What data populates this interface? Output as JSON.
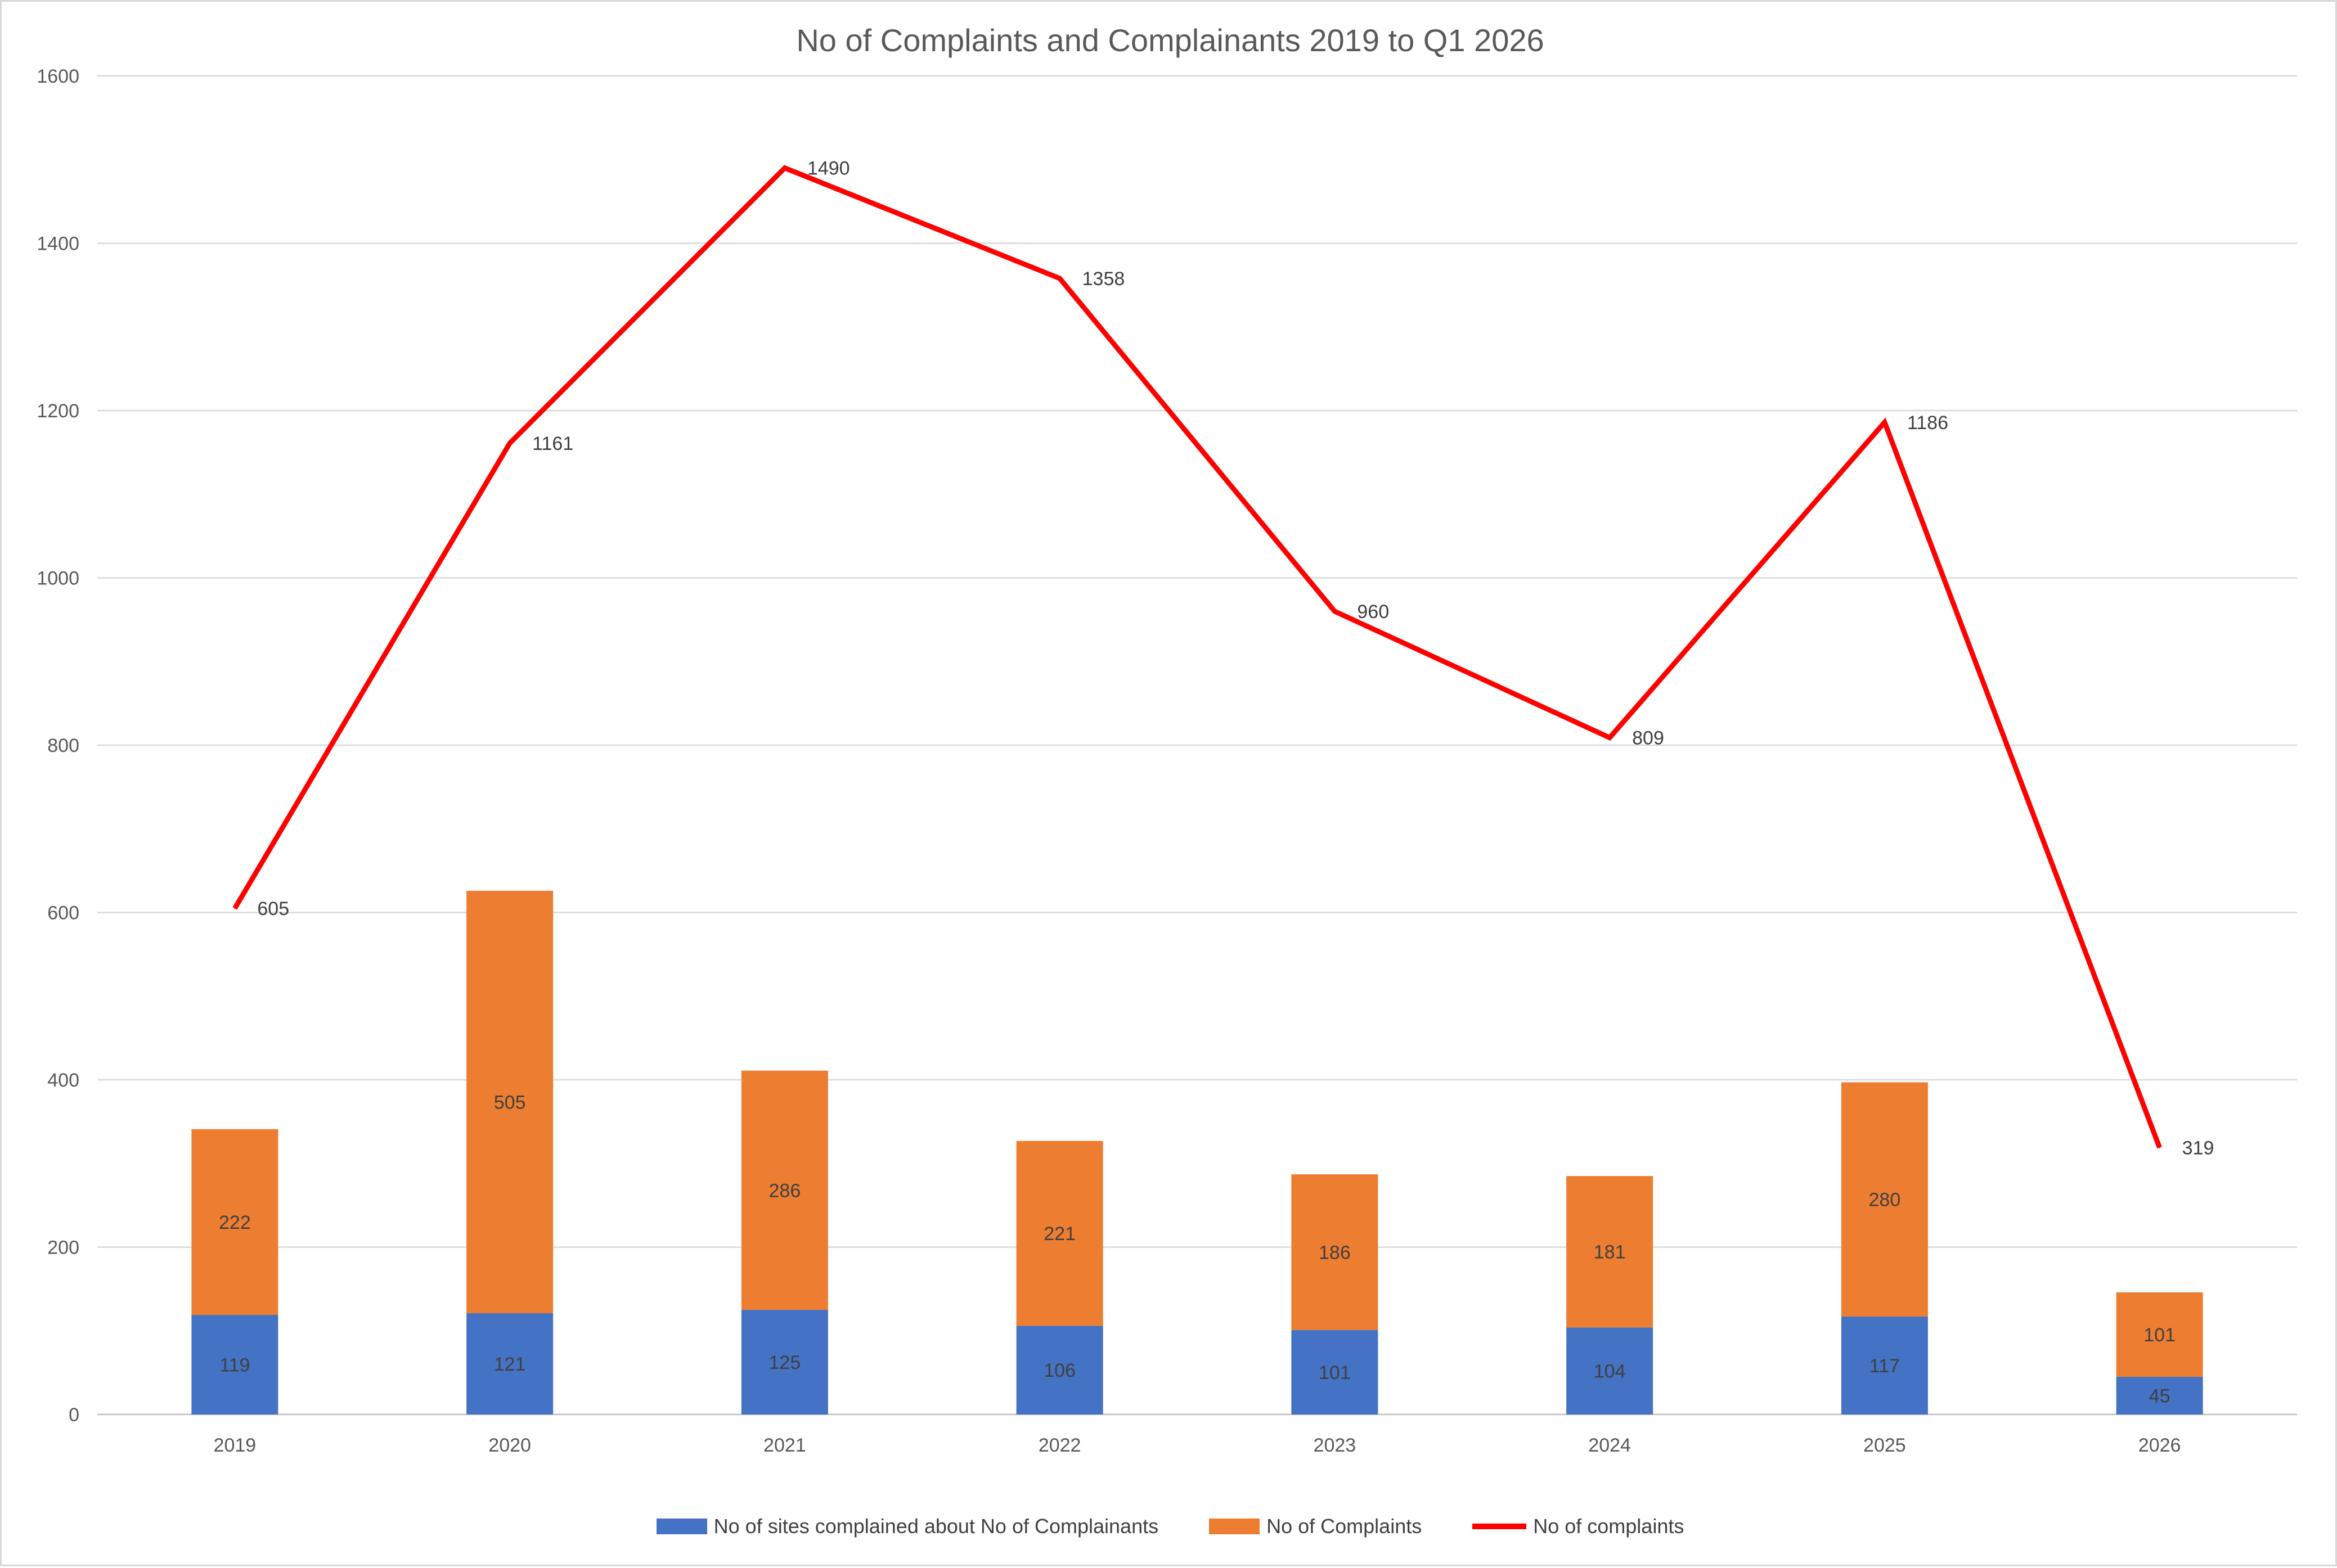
{
  "chart_data": {
    "type": "bar",
    "title": "No of Complaints and Complainants 2019 to Q1 2026",
    "categories": [
      "2019",
      "2020",
      "2021",
      "2022",
      "2023",
      "2024",
      "2025",
      "2026"
    ],
    "ylim": [
      0,
      1600
    ],
    "yticks": [
      0,
      200,
      400,
      600,
      800,
      1000,
      1200,
      1400,
      1600
    ],
    "grid": true,
    "legend_position": "bottom",
    "series": [
      {
        "name": "No of sites complained about No of Complainants",
        "kind": "stacked-bar",
        "color": "#4472c4",
        "values": [
          119,
          121,
          125,
          106,
          101,
          104,
          117,
          45
        ]
      },
      {
        "name": "No of Complaints",
        "kind": "stacked-bar",
        "color": "#ed7d31",
        "values": [
          222,
          505,
          286,
          221,
          186,
          181,
          280,
          101
        ]
      },
      {
        "name": "No of complaints",
        "kind": "line",
        "color": "#ff0000",
        "values": [
          605,
          1161,
          1490,
          1358,
          960,
          809,
          1186,
          319
        ]
      }
    ]
  }
}
